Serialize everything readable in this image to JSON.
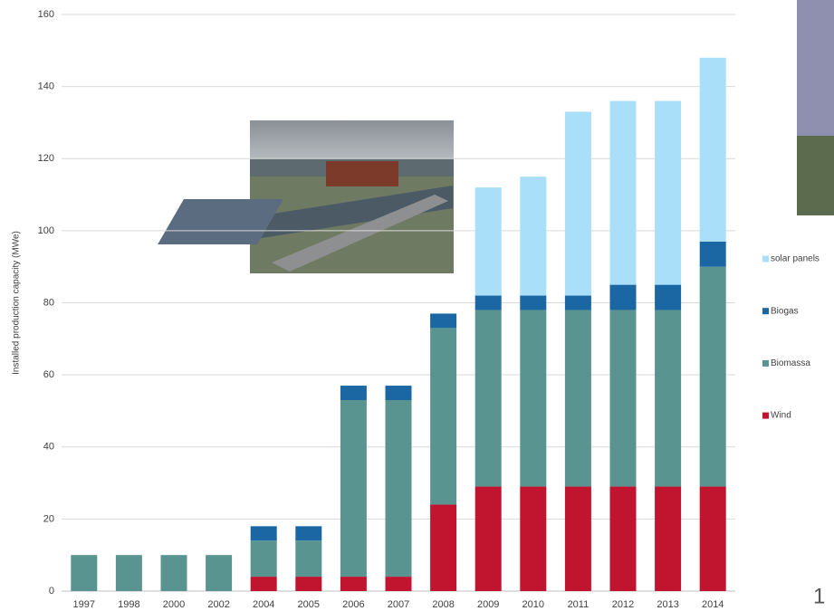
{
  "chart_data": {
    "type": "stacked-bar",
    "y_label": "Installed production capacity (MWe)",
    "categories": [
      "1997",
      "1998",
      "2000",
      "2002",
      "2004",
      "2005",
      "2006",
      "2007",
      "2008",
      "2009",
      "2010",
      "2011",
      "2012",
      "2013",
      "2014"
    ],
    "series": [
      {
        "name": "Wind",
        "color": "#c0142f",
        "values": [
          0,
          0,
          0,
          0,
          4,
          4,
          4,
          4,
          24,
          29,
          29,
          29,
          29,
          29,
          29
        ]
      },
      {
        "name": "Biomassa",
        "color": "#5a9490",
        "values": [
          10,
          10,
          10,
          10,
          10,
          10,
          49,
          49,
          49,
          49,
          49,
          49,
          49,
          49,
          61
        ]
      },
      {
        "name": "Biogas",
        "color": "#1b67a3",
        "values": [
          0,
          0,
          0,
          0,
          4,
          4,
          4,
          4,
          4,
          4,
          4,
          4,
          7,
          7,
          7
        ]
      },
      {
        "name": "solar panels",
        "color": "#a9dff8",
        "values": [
          0,
          0,
          0,
          0,
          0,
          0,
          0,
          0,
          0,
          30,
          33,
          51,
          51,
          51,
          51
        ]
      }
    ],
    "ylim": [
      0,
      160
    ],
    "yticks": [
      0,
      20,
      40,
      60,
      80,
      100,
      120,
      140,
      160
    ],
    "grid": true
  },
  "page_number": "1"
}
